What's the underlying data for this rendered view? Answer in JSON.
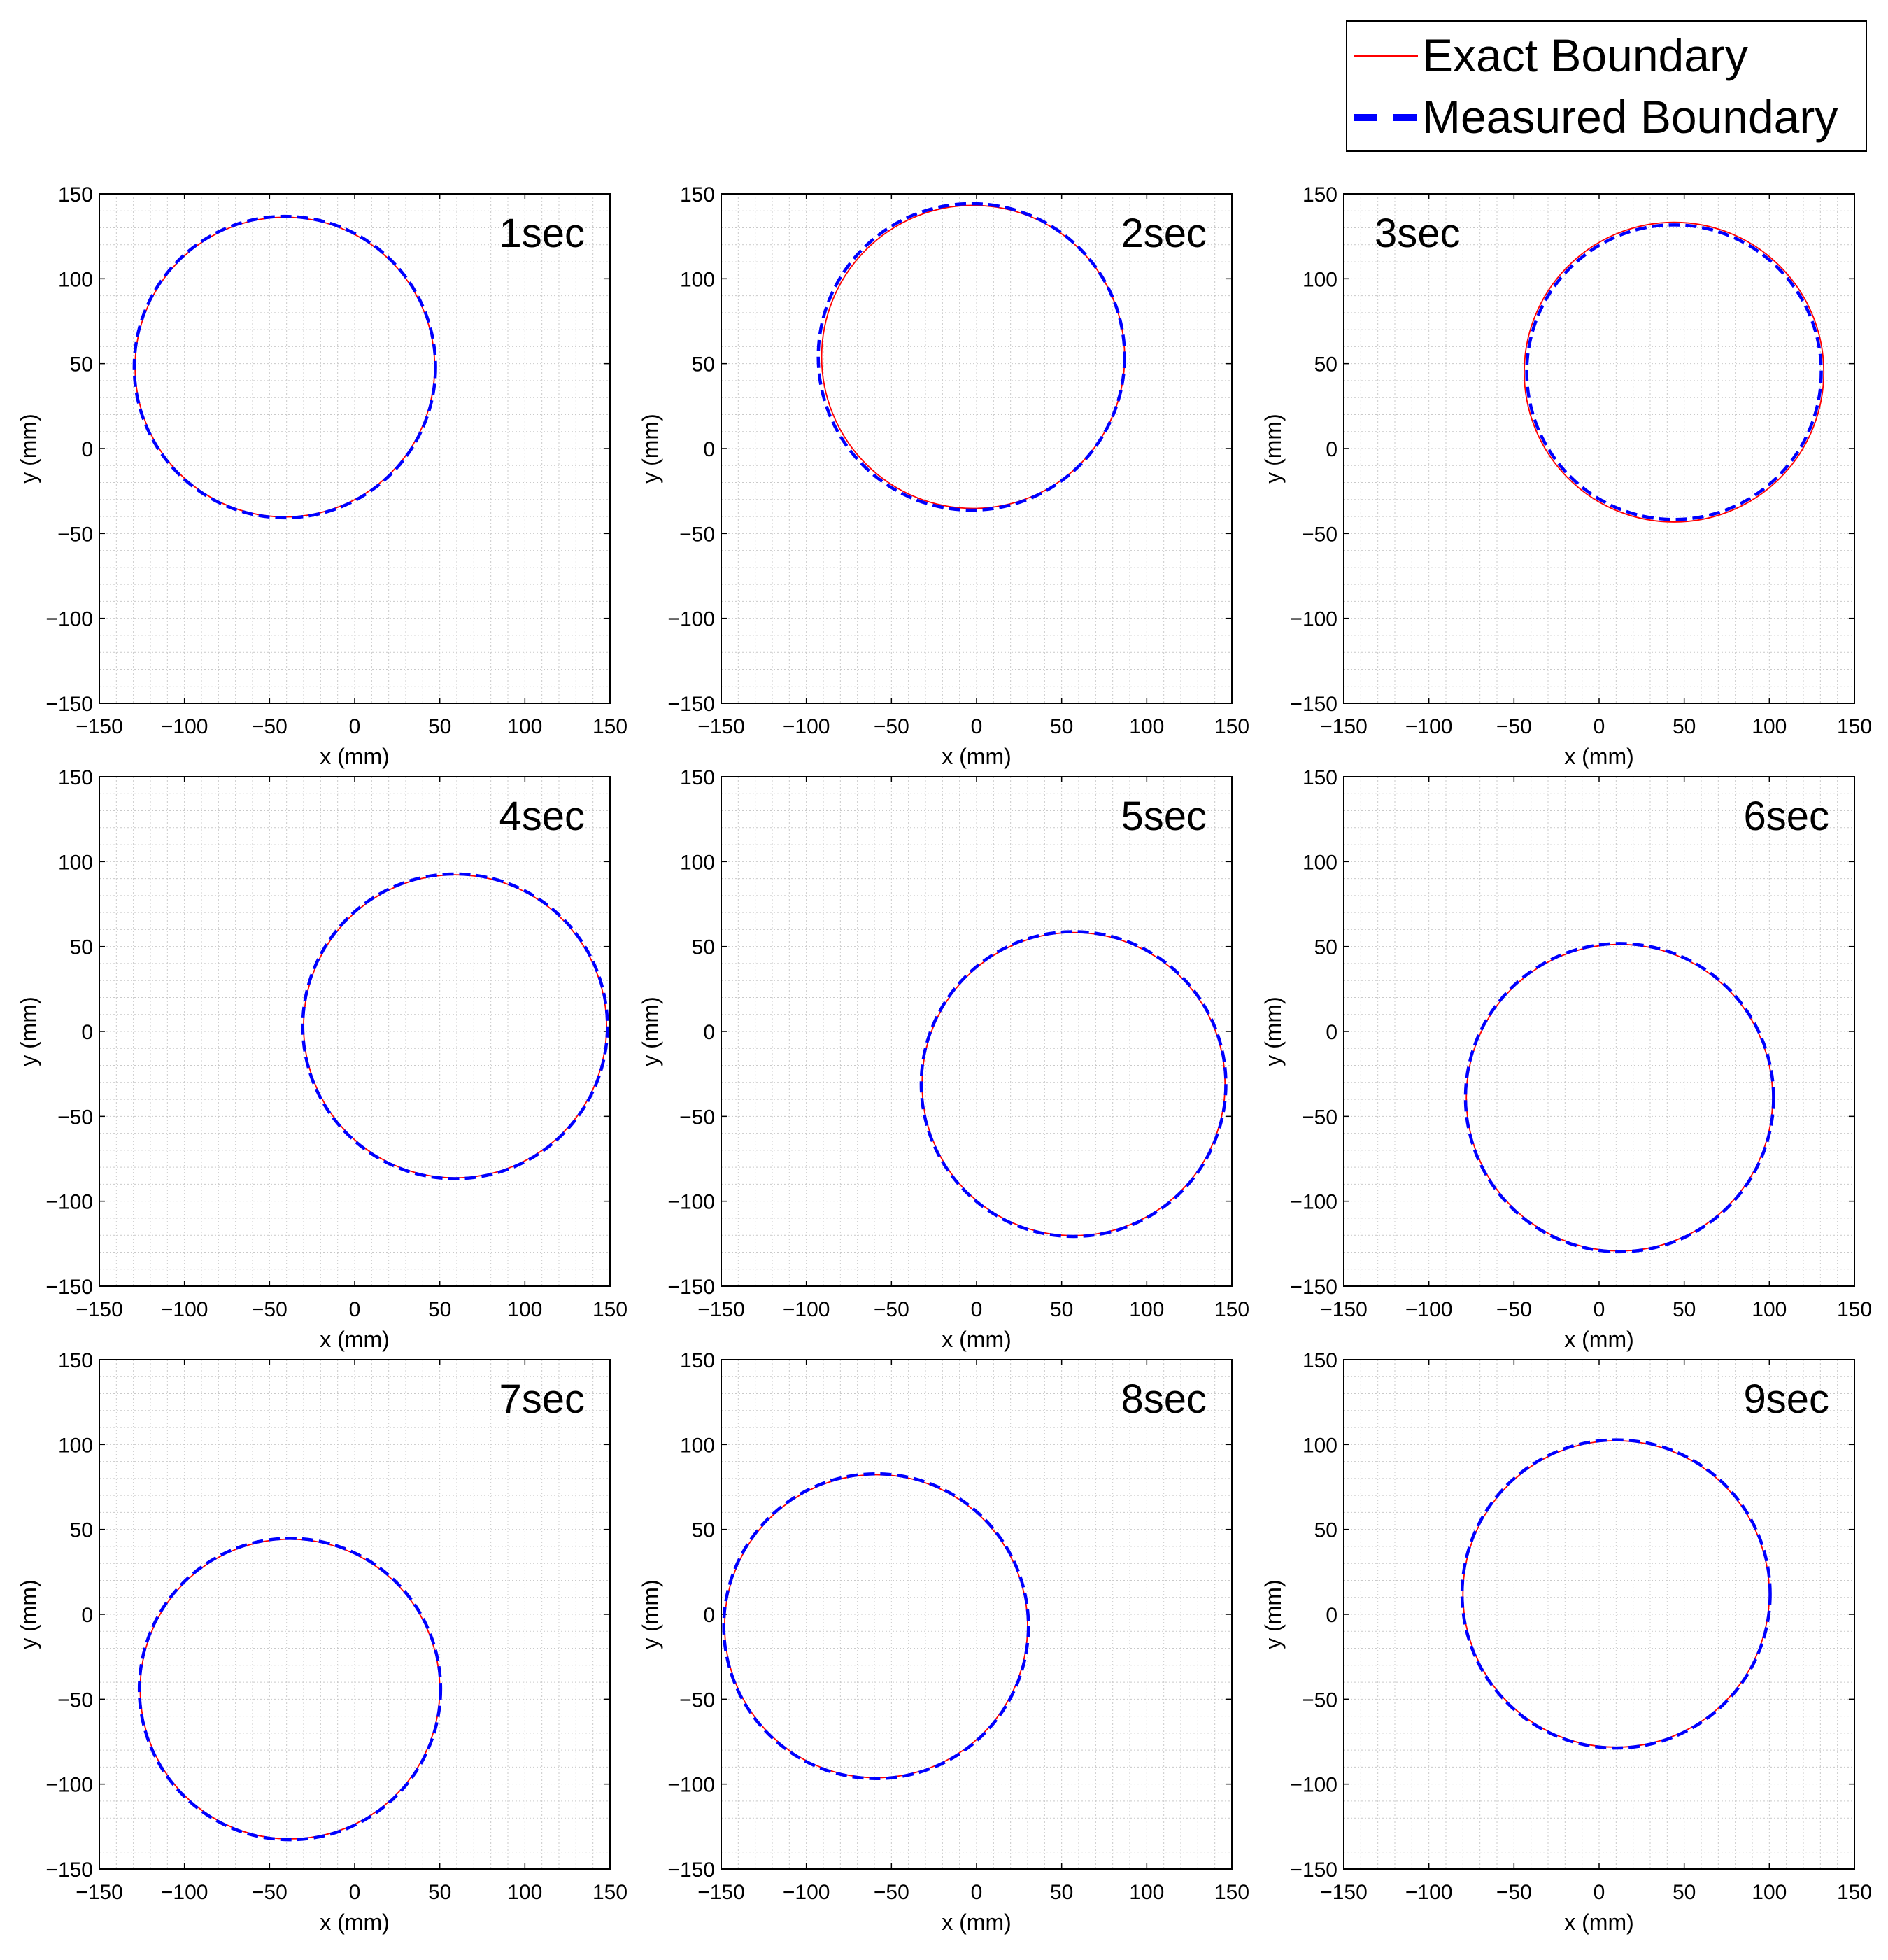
{
  "legend": {
    "entries": [
      {
        "label": "Exact Boundary",
        "color": "#ff0000",
        "style": "solid"
      },
      {
        "label": "Measured Boundary",
        "color": "#0000ff",
        "style": "dashed"
      }
    ],
    "placement": "top-right"
  },
  "chart_data": [
    {
      "type": "line",
      "annotation": "1sec",
      "xlabel": "x (mm)",
      "ylabel": "y (mm)",
      "xlim": [
        -150,
        150
      ],
      "ylim": [
        -150,
        150
      ],
      "xticks": [
        -150,
        -100,
        -50,
        0,
        50,
        100,
        150
      ],
      "yticks": [
        -150,
        -100,
        -50,
        0,
        50,
        100,
        150
      ],
      "grid": true,
      "series": [
        {
          "name": "Exact Boundary",
          "center": [
            -41,
            48
          ],
          "radius": 88
        },
        {
          "name": "Measured Boundary",
          "center": [
            -41,
            48
          ],
          "radius": 88.5
        }
      ]
    },
    {
      "type": "line",
      "annotation": "2sec",
      "xlabel": "x (mm)",
      "ylabel": "y (mm)",
      "xlim": [
        -150,
        150
      ],
      "ylim": [
        -150,
        150
      ],
      "xticks": [
        -150,
        -100,
        -50,
        0,
        50,
        100,
        150
      ],
      "yticks": [
        -150,
        -100,
        -50,
        0,
        50,
        100,
        150
      ],
      "grid": true,
      "series": [
        {
          "name": "Exact Boundary",
          "center": [
            -2,
            54
          ],
          "radius": 89
        },
        {
          "name": "Measured Boundary",
          "center": [
            -3,
            54
          ],
          "radius": 90
        }
      ]
    },
    {
      "type": "line",
      "annotation": "3sec",
      "xlabel": "x (mm)",
      "ylabel": "y (mm)",
      "xlim": [
        -150,
        150
      ],
      "ylim": [
        -150,
        150
      ],
      "xticks": [
        -150,
        -100,
        -50,
        0,
        50,
        100,
        150
      ],
      "yticks": [
        -150,
        -100,
        -50,
        0,
        50,
        100,
        150
      ],
      "grid": true,
      "series": [
        {
          "name": "Exact Boundary",
          "center": [
            44,
            45
          ],
          "radius": 88
        },
        {
          "name": "Measured Boundary",
          "center": [
            44,
            45
          ],
          "radius": 86.5
        }
      ]
    },
    {
      "type": "line",
      "annotation": "4sec",
      "xlabel": "x (mm)",
      "ylabel": "y (mm)",
      "xlim": [
        -150,
        150
      ],
      "ylim": [
        -150,
        150
      ],
      "xticks": [
        -150,
        -100,
        -50,
        0,
        50,
        100,
        150
      ],
      "yticks": [
        -150,
        -100,
        -50,
        0,
        50,
        100,
        150
      ],
      "grid": true,
      "series": [
        {
          "name": "Exact Boundary",
          "center": [
            59,
            3
          ],
          "radius": 89
        },
        {
          "name": "Measured Boundary",
          "center": [
            59,
            3
          ],
          "radius": 89.5
        }
      ]
    },
    {
      "type": "line",
      "annotation": "5sec",
      "xlabel": "x (mm)",
      "ylabel": "y (mm)",
      "xlim": [
        -150,
        150
      ],
      "ylim": [
        -150,
        150
      ],
      "xticks": [
        -150,
        -100,
        -50,
        0,
        50,
        100,
        150
      ],
      "yticks": [
        -150,
        -100,
        -50,
        0,
        50,
        100,
        150
      ],
      "grid": true,
      "series": [
        {
          "name": "Exact Boundary",
          "center": [
            57,
            -31
          ],
          "radius": 89
        },
        {
          "name": "Measured Boundary",
          "center": [
            57,
            -31
          ],
          "radius": 89.5
        }
      ]
    },
    {
      "type": "line",
      "annotation": "6sec",
      "xlabel": "x (mm)",
      "ylabel": "y (mm)",
      "xlim": [
        -150,
        150
      ],
      "ylim": [
        -150,
        150
      ],
      "xticks": [
        -150,
        -100,
        -50,
        0,
        50,
        100,
        150
      ],
      "yticks": [
        -150,
        -100,
        -50,
        0,
        50,
        100,
        150
      ],
      "grid": true,
      "series": [
        {
          "name": "Exact Boundary",
          "center": [
            12,
            -39
          ],
          "radius": 90
        },
        {
          "name": "Measured Boundary",
          "center": [
            12,
            -39
          ],
          "radius": 90.5
        }
      ]
    },
    {
      "type": "line",
      "annotation": "7sec",
      "xlabel": "x (mm)",
      "ylabel": "y (mm)",
      "xlim": [
        -150,
        150
      ],
      "ylim": [
        -150,
        150
      ],
      "xticks": [
        -150,
        -100,
        -50,
        0,
        50,
        100,
        150
      ],
      "yticks": [
        -150,
        -100,
        -50,
        0,
        50,
        100,
        150
      ],
      "grid": true,
      "series": [
        {
          "name": "Exact Boundary",
          "center": [
            -38,
            -44
          ],
          "radius": 88
        },
        {
          "name": "Measured Boundary",
          "center": [
            -38,
            -44
          ],
          "radius": 88.5
        }
      ]
    },
    {
      "type": "line",
      "annotation": "8sec",
      "xlabel": "x (mm)",
      "ylabel": "y (mm)",
      "xlim": [
        -150,
        150
      ],
      "ylim": [
        -150,
        150
      ],
      "xticks": [
        -150,
        -100,
        -50,
        0,
        50,
        100,
        150
      ],
      "yticks": [
        -150,
        -100,
        -50,
        0,
        50,
        100,
        150
      ],
      "grid": true,
      "series": [
        {
          "name": "Exact Boundary",
          "center": [
            -59,
            -7
          ],
          "radius": 89
        },
        {
          "name": "Measured Boundary",
          "center": [
            -59,
            -7
          ],
          "radius": 89.5
        }
      ]
    },
    {
      "type": "line",
      "annotation": "9sec",
      "xlabel": "x (mm)",
      "ylabel": "y (mm)",
      "xlim": [
        -150,
        150
      ],
      "ylim": [
        -150,
        150
      ],
      "xticks": [
        -150,
        -100,
        -50,
        0,
        50,
        100,
        150
      ],
      "yticks": [
        -150,
        -100,
        -50,
        0,
        50,
        100,
        150
      ],
      "grid": true,
      "series": [
        {
          "name": "Exact Boundary",
          "center": [
            10,
            12
          ],
          "radius": 90
        },
        {
          "name": "Measured Boundary",
          "center": [
            10,
            12
          ],
          "radius": 90.5
        }
      ]
    }
  ]
}
